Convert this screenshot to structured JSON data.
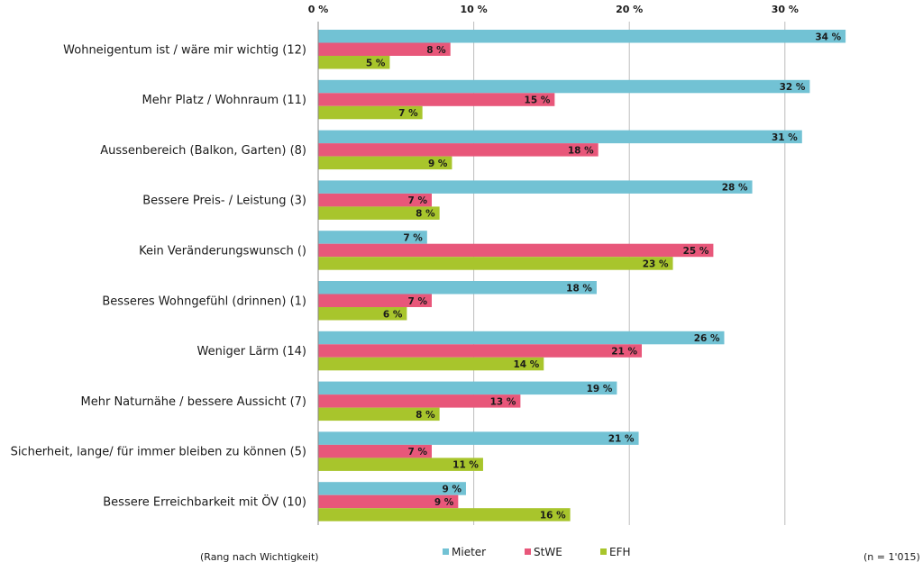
{
  "chart_data": {
    "type": "bar",
    "orientation": "horizontal",
    "categories": [
      "Wohneigentum ist / wäre mir wichtig (12)",
      "Mehr Platz / Wohnraum (11)",
      "Aussenbereich (Balkon, Garten) (8)",
      "Bessere Preis- / Leistung  (3)",
      "Kein Veränderungswunsch ()",
      "Besseres Wohngefühl (drinnen) (1)",
      "Weniger Lärm (14)",
      "Mehr Naturnähe / bessere Aussicht (7)",
      "Sicherheit, lange/ für immer bleiben zu können (5)",
      "Bessere Erreichbarkeit mit ÖV (10)"
    ],
    "series": [
      {
        "name": "Mieter",
        "color": "#72c2d4",
        "values": [
          33.9,
          31.6,
          31.1,
          27.9,
          7.0,
          17.9,
          26.1,
          19.2,
          20.6,
          9.5
        ],
        "labels": [
          "34 %",
          "32 %",
          "31 %",
          "28 %",
          "7 %",
          "18 %",
          "26 %",
          "19 %",
          "21 %",
          "9 %"
        ]
      },
      {
        "name": "StWE",
        "color": "#e8577a",
        "values": [
          8.5,
          15.2,
          18.0,
          7.3,
          25.4,
          7.3,
          20.8,
          13.0,
          7.3,
          9.0
        ],
        "labels": [
          "8 %",
          "15 %",
          "18 %",
          "7 %",
          "25 %",
          "7 %",
          "21 %",
          "13 %",
          "7 %",
          "9 %"
        ]
      },
      {
        "name": "EFH",
        "color": "#a8c52c",
        "values": [
          4.6,
          6.7,
          8.6,
          7.8,
          22.8,
          5.7,
          14.5,
          7.8,
          10.6,
          16.2
        ],
        "labels": [
          "5 %",
          "7 %",
          "9 %",
          "8 %",
          "23 %",
          "6 %",
          "14 %",
          "8 %",
          "11 %",
          "16 %"
        ]
      }
    ],
    "xticks": [
      0,
      10,
      20,
      30
    ],
    "xtick_labels": [
      "0 %",
      "10 %",
      "20 %",
      "30 %"
    ],
    "xlim": [
      0,
      35
    ],
    "grid": "vertical",
    "legend_position": "bottom"
  },
  "notes": {
    "left": "(Rang nach Wichtigkeit)",
    "right": "(n = 1'015)"
  }
}
